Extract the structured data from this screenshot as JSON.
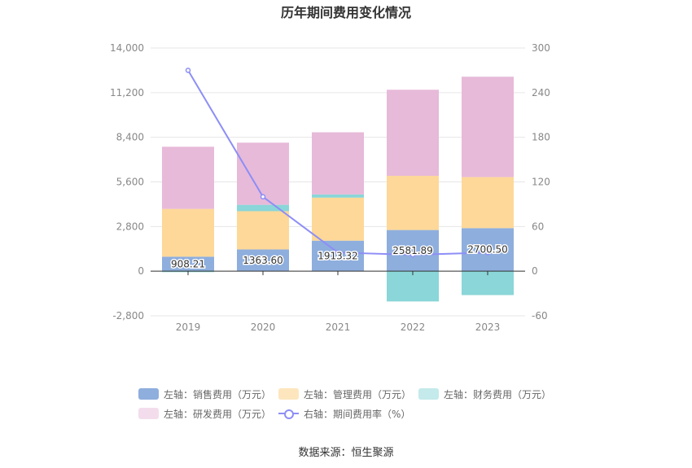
{
  "title": "历年期间费用变化情况",
  "source": "数据来源：恒生聚源",
  "chart_data": {
    "type": "bar",
    "stacked": true,
    "categories": [
      "2019",
      "2020",
      "2021",
      "2022",
      "2023"
    ],
    "left_axis": {
      "min": -2800,
      "max": 14000,
      "step": 2800,
      "ticks": [
        "-2,800",
        "0",
        "2,800",
        "5,600",
        "8,400",
        "11,200",
        "14,000"
      ]
    },
    "right_axis": {
      "min": -60,
      "max": 300,
      "step": 60,
      "ticks": [
        "-60",
        "0",
        "60",
        "120",
        "180",
        "240",
        "300"
      ]
    },
    "grid": true,
    "legend_position": "bottom",
    "series": [
      {
        "name": "左轴：销售费用（万元）",
        "axis": "left",
        "color": "#8eaedd",
        "values": [
          908.21,
          1363.6,
          1913.32,
          2581.89,
          2700.5
        ],
        "labels": [
          "908.21",
          "1363.60",
          "1913.32",
          "2581.89",
          "2700.50"
        ]
      },
      {
        "name": "左轴：管理费用（万元）",
        "axis": "left",
        "color": "#fdd899",
        "values": [
          3000,
          2400,
          2700,
          3400,
          3200
        ]
      },
      {
        "name": "左轴：财务费用（万元）",
        "axis": "left",
        "color": "#8ad6d8",
        "values": [
          -60,
          400,
          200,
          -1900,
          -1500
        ]
      },
      {
        "name": "左轴：研发费用（万元）",
        "axis": "left",
        "color": "#e7bad9",
        "values": [
          3900,
          3900,
          3900,
          5400,
          6300
        ]
      },
      {
        "name": "右轴：期间费用率（%）",
        "axis": "right",
        "type": "line",
        "color": "#8d8ef6",
        "values": [
          270,
          100,
          25,
          22,
          25
        ]
      }
    ],
    "legend": [
      {
        "label": "左轴：销售费用（万元）",
        "color": "#8eaedd",
        "kind": "bar"
      },
      {
        "label": "左轴：管理费用（万元）",
        "color": "#fde6be",
        "kind": "bar"
      },
      {
        "label": "左轴：财务费用（万元）",
        "color": "#c4eaeb",
        "kind": "bar"
      },
      {
        "label": "左轴：研发费用（万元）",
        "color": "#f3dded",
        "kind": "bar"
      },
      {
        "label": "右轴：期间费用率（%）",
        "color": "#8d8ef6",
        "kind": "line"
      }
    ]
  }
}
